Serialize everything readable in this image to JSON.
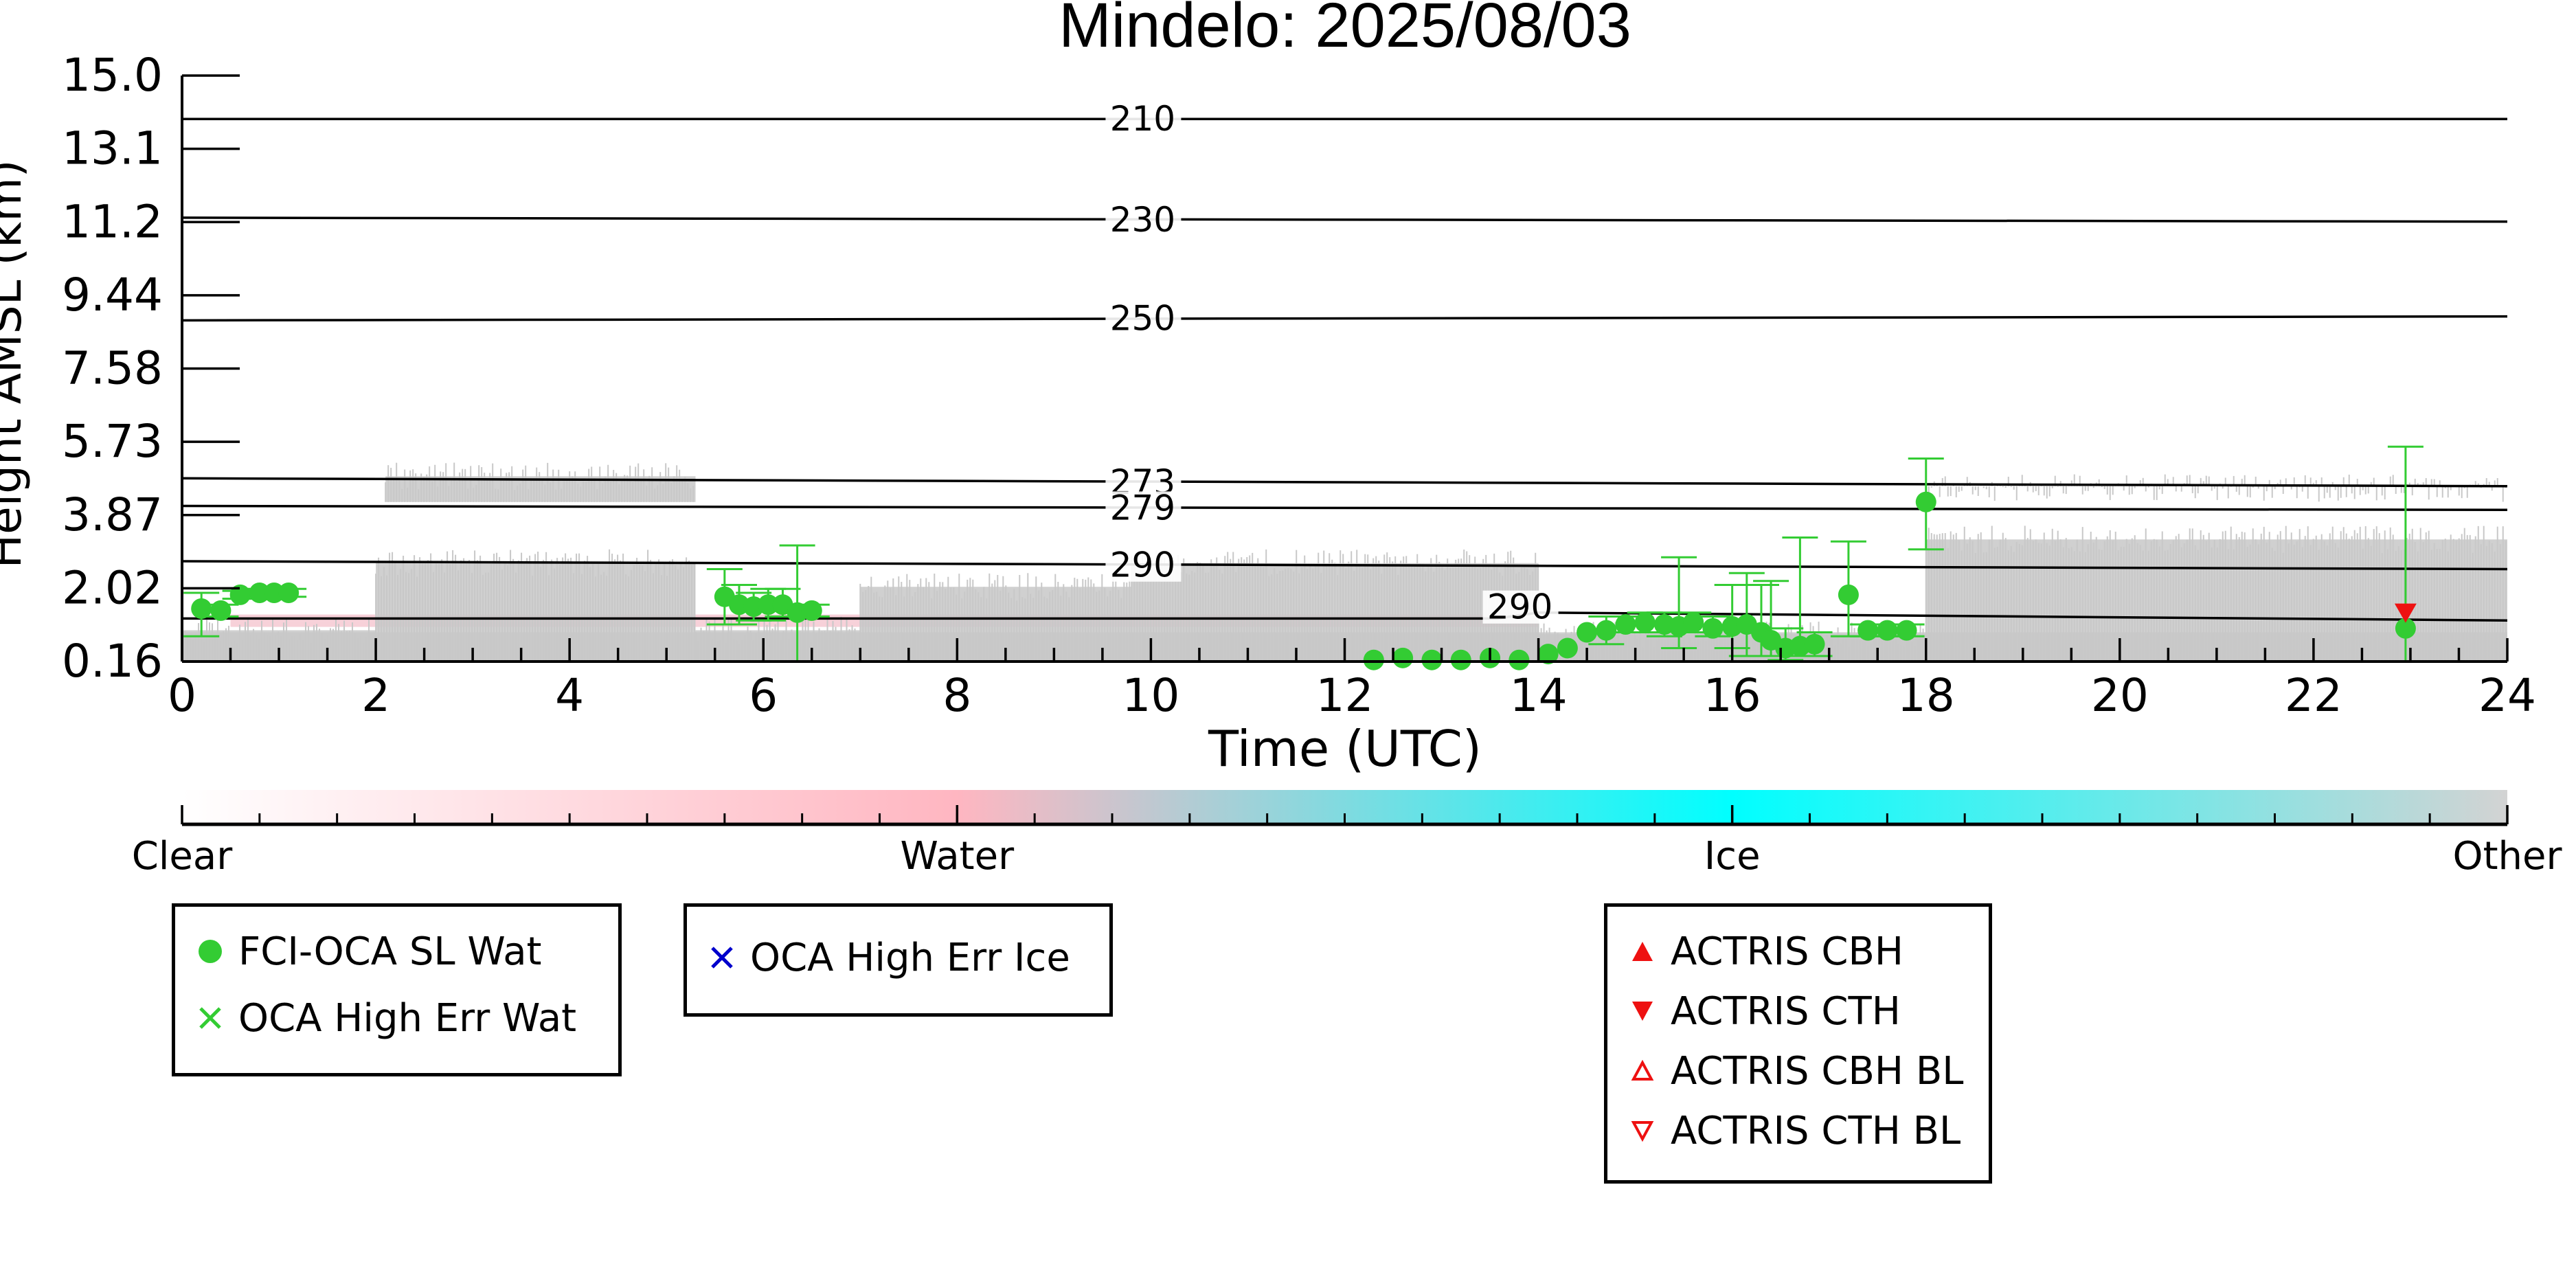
{
  "chart_data": {
    "type": "scatter",
    "title": "Mindelo: 2025/08/03",
    "xlabel": "Time (UTC)",
    "ylabel": "Height AMSL (km)",
    "xlim": [
      0,
      24
    ],
    "ylim": [
      0.16,
      15.0
    ],
    "x_ticks": [
      "0",
      "2",
      "4",
      "6",
      "8",
      "10",
      "12",
      "14",
      "16",
      "18",
      "20",
      "22",
      "24"
    ],
    "y_ticks": [
      "0.16",
      "2.02",
      "3.87",
      "5.73",
      "7.58",
      "9.44",
      "11.2",
      "13.1",
      "15.0"
    ],
    "isotherms": [
      {
        "label": "210",
        "y_start": 13.9,
        "y_end": 13.9
      },
      {
        "label": "230",
        "y_start": 11.4,
        "y_end": 11.3
      },
      {
        "label": "250",
        "y_start": 8.8,
        "y_end": 8.9
      },
      {
        "label": "273",
        "y_start": 4.8,
        "y_end": 4.6
      },
      {
        "label": "279",
        "y_start": 4.1,
        "y_end": 4.0
      },
      {
        "label": "290",
        "y_start": 2.7,
        "y_end": 2.5
      },
      {
        "label": "290",
        "y_start": 1.25,
        "y_end": 1.2,
        "bump_x": 14.0,
        "bump_y": 1.4
      }
    ],
    "series": [
      {
        "name": "FCI-OCA SL Wat",
        "color": "#33cc33",
        "marker": "circle",
        "points": [
          {
            "x": 0.2,
            "y": 1.5,
            "lo": 0.8,
            "hi": 1.9
          },
          {
            "x": 0.4,
            "y": 1.45,
            "lo": 1.3,
            "hi": 1.6
          },
          {
            "x": 0.6,
            "y": 1.85,
            "lo": 1.75,
            "hi": 1.95
          },
          {
            "x": 0.8,
            "y": 1.9,
            "lo": 1.8,
            "hi": 2.0
          },
          {
            "x": 0.95,
            "y": 1.9,
            "lo": 1.8,
            "hi": 2.0
          },
          {
            "x": 1.1,
            "y": 1.9,
            "lo": 1.8,
            "hi": 2.0
          },
          {
            "x": 5.6,
            "y": 1.8,
            "lo": 1.1,
            "hi": 2.5
          },
          {
            "x": 5.75,
            "y": 1.6,
            "lo": 1.1,
            "hi": 2.1
          },
          {
            "x": 5.9,
            "y": 1.55,
            "lo": 1.2,
            "hi": 1.9
          },
          {
            "x": 6.05,
            "y": 1.6,
            "lo": 1.2,
            "hi": 2.0
          },
          {
            "x": 6.2,
            "y": 1.6,
            "lo": 1.3,
            "hi": 2.0
          },
          {
            "x": 6.35,
            "y": 1.4,
            "lo": 0.16,
            "hi": 3.1
          },
          {
            "x": 6.5,
            "y": 1.45,
            "lo": 1.3,
            "hi": 1.6
          },
          {
            "x": 12.3,
            "y": 0.2
          },
          {
            "x": 12.6,
            "y": 0.25
          },
          {
            "x": 12.9,
            "y": 0.2
          },
          {
            "x": 13.2,
            "y": 0.2
          },
          {
            "x": 13.5,
            "y": 0.25
          },
          {
            "x": 13.8,
            "y": 0.2
          },
          {
            "x": 14.1,
            "y": 0.35
          },
          {
            "x": 14.3,
            "y": 0.5
          },
          {
            "x": 14.5,
            "y": 0.9
          },
          {
            "x": 14.7,
            "y": 0.95,
            "lo": 0.6,
            "hi": 1.3
          },
          {
            "x": 14.9,
            "y": 1.1,
            "lo": 0.9,
            "hi": 1.3
          },
          {
            "x": 15.1,
            "y": 1.15,
            "lo": 0.9,
            "hi": 1.4
          },
          {
            "x": 15.3,
            "y": 1.1,
            "lo": 0.8,
            "hi": 1.4
          },
          {
            "x": 15.45,
            "y": 1.05,
            "lo": 0.5,
            "hi": 2.8
          },
          {
            "x": 15.6,
            "y": 1.15,
            "lo": 0.9,
            "hi": 1.4
          },
          {
            "x": 15.8,
            "y": 1.0,
            "lo": 0.8,
            "hi": 1.3
          },
          {
            "x": 16.0,
            "y": 1.05,
            "lo": 0.5,
            "hi": 2.1
          },
          {
            "x": 16.15,
            "y": 1.1,
            "lo": 0.3,
            "hi": 2.4
          },
          {
            "x": 16.3,
            "y": 0.9,
            "lo": 0.3,
            "hi": 2.1
          },
          {
            "x": 16.4,
            "y": 0.7,
            "lo": 0.3,
            "hi": 2.2
          },
          {
            "x": 16.55,
            "y": 0.5,
            "lo": 0.2,
            "hi": 1.0
          },
          {
            "x": 16.7,
            "y": 0.55,
            "lo": 0.3,
            "hi": 3.3
          },
          {
            "x": 16.85,
            "y": 0.6,
            "lo": 0.3,
            "hi": 0.9
          },
          {
            "x": 17.2,
            "y": 1.85,
            "lo": 0.8,
            "hi": 3.2
          },
          {
            "x": 17.4,
            "y": 0.95,
            "lo": 0.8,
            "hi": 1.1
          },
          {
            "x": 17.6,
            "y": 0.95,
            "lo": 0.8,
            "hi": 1.1
          },
          {
            "x": 17.8,
            "y": 0.95,
            "lo": 0.8,
            "hi": 1.1
          },
          {
            "x": 18.0,
            "y": 4.2,
            "lo": 3.0,
            "hi": 5.3
          },
          {
            "x": 22.95,
            "y": 1.0,
            "lo": 0.16,
            "hi": 5.6
          }
        ]
      },
      {
        "name": "OCA High Err Wat",
        "color": "#33cc33",
        "marker": "x",
        "points": []
      },
      {
        "name": "OCA High Err Ice",
        "color": "#0000cc",
        "marker": "x",
        "points": []
      },
      {
        "name": "ACTRIS CBH",
        "color": "#ee1111",
        "marker": "triangle-up",
        "points": []
      },
      {
        "name": "ACTRIS CTH",
        "color": "#ee1111",
        "marker": "triangle-down",
        "points": [
          {
            "x": 22.95,
            "y": 1.35
          }
        ]
      },
      {
        "name": "ACTRIS CBH BL",
        "color": "#ee1111",
        "marker": "triangle-up-open",
        "points": []
      },
      {
        "name": "ACTRIS CTH BL",
        "color": "#ee1111",
        "marker": "triangle-down-open",
        "points": []
      }
    ],
    "lidar_background": {
      "color": "#c8c8c8",
      "segments": [
        {
          "x0": 0.0,
          "x1": 2.0,
          "y0": 0.16,
          "y1": 1.3
        },
        {
          "x0": 2.0,
          "x1": 5.3,
          "y0": 0.16,
          "y1": 3.0
        },
        {
          "x0": 2.1,
          "x1": 5.3,
          "y0": 4.2,
          "y1": 5.2
        },
        {
          "x0": 5.3,
          "x1": 7.0,
          "y0": 0.16,
          "y1": 1.3
        },
        {
          "x0": 7.0,
          "x1": 9.8,
          "y0": 0.16,
          "y1": 2.4
        },
        {
          "x0": 9.8,
          "x1": 14.0,
          "y0": 0.16,
          "y1": 3.0
        },
        {
          "x0": 14.0,
          "x1": 18.0,
          "y0": 0.16,
          "y1": 1.2
        },
        {
          "x0": 18.0,
          "x1": 24.0,
          "y0": 0.16,
          "y1": 3.6
        },
        {
          "x0": 18.0,
          "x1": 24.0,
          "y0": 4.6,
          "y1": 4.9
        }
      ]
    },
    "colorbar": {
      "labels": [
        "Clear",
        "Water",
        "Ice",
        "Other"
      ],
      "colors": [
        "#ffffff",
        "#ffb6c1",
        "#00ffff",
        "#d3d3d3"
      ]
    }
  },
  "legends": {
    "water": [
      "FCI-OCA SL Wat",
      "OCA High Err Wat"
    ],
    "ice": [
      "OCA High Err Ice"
    ],
    "actris": [
      "ACTRIS CBH",
      "ACTRIS CTH",
      "ACTRIS CBH BL",
      "ACTRIS CTH BL"
    ]
  }
}
